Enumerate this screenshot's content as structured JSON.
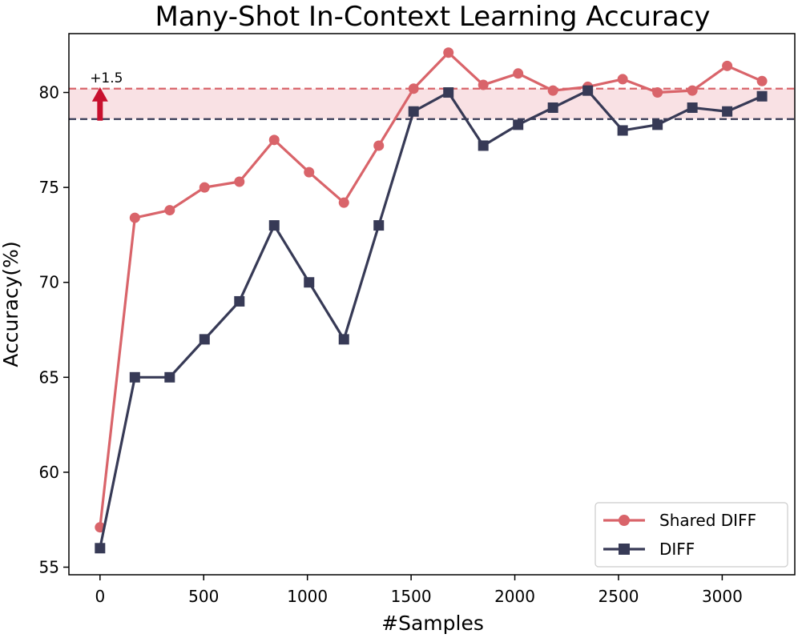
{
  "chart_data": {
    "type": "line",
    "title": "Many-Shot In-Context Learning Accuracy",
    "xlabel": "#Samples",
    "ylabel": "Accuracy(%)",
    "xlim": [
      -150,
      3350
    ],
    "ylim": [
      54.6,
      83.1
    ],
    "xticks": [
      0,
      500,
      1000,
      1500,
      2000,
      2500,
      3000
    ],
    "yticks": [
      55,
      60,
      65,
      70,
      75,
      80
    ],
    "grid": false,
    "legend_position": "bottom-right",
    "x": [
      0,
      168,
      336,
      504,
      672,
      840,
      1008,
      1176,
      1344,
      1512,
      1680,
      1848,
      2016,
      2184,
      2352,
      2520,
      2688,
      2856,
      3024,
      3192
    ],
    "series": [
      {
        "name": "Shared DIFF",
        "color": "#d9646a",
        "marker": "circle",
        "values": [
          57.1,
          73.4,
          73.8,
          75.0,
          75.3,
          77.5,
          75.8,
          74.2,
          77.2,
          80.2,
          82.1,
          80.4,
          81.0,
          80.1,
          80.3,
          80.7,
          80.0,
          80.1,
          81.4,
          80.6
        ]
      },
      {
        "name": "DIFF",
        "color": "#373a56",
        "marker": "square",
        "values": [
          56.0,
          65.0,
          65.0,
          67.0,
          69.0,
          73.0,
          70.0,
          67.0,
          73.0,
          79.0,
          80.0,
          77.2,
          78.3,
          79.2,
          80.1,
          78.0,
          78.3,
          79.2,
          79.0,
          79.8
        ]
      }
    ],
    "reference_lines": [
      {
        "series": "Shared DIFF",
        "y": 80.2,
        "color": "#d9646a",
        "style": "dashed"
      },
      {
        "series": "DIFF",
        "y": 78.6,
        "color": "#373a56",
        "style": "dashed"
      }
    ],
    "band": {
      "y0": 78.6,
      "y1": 80.2,
      "color": "#f9e1e4"
    },
    "annotation": {
      "text": "+1.5",
      "arrow_color": "#c8102e",
      "x": 0,
      "y_from": 78.6,
      "y_to": 80.2
    }
  }
}
